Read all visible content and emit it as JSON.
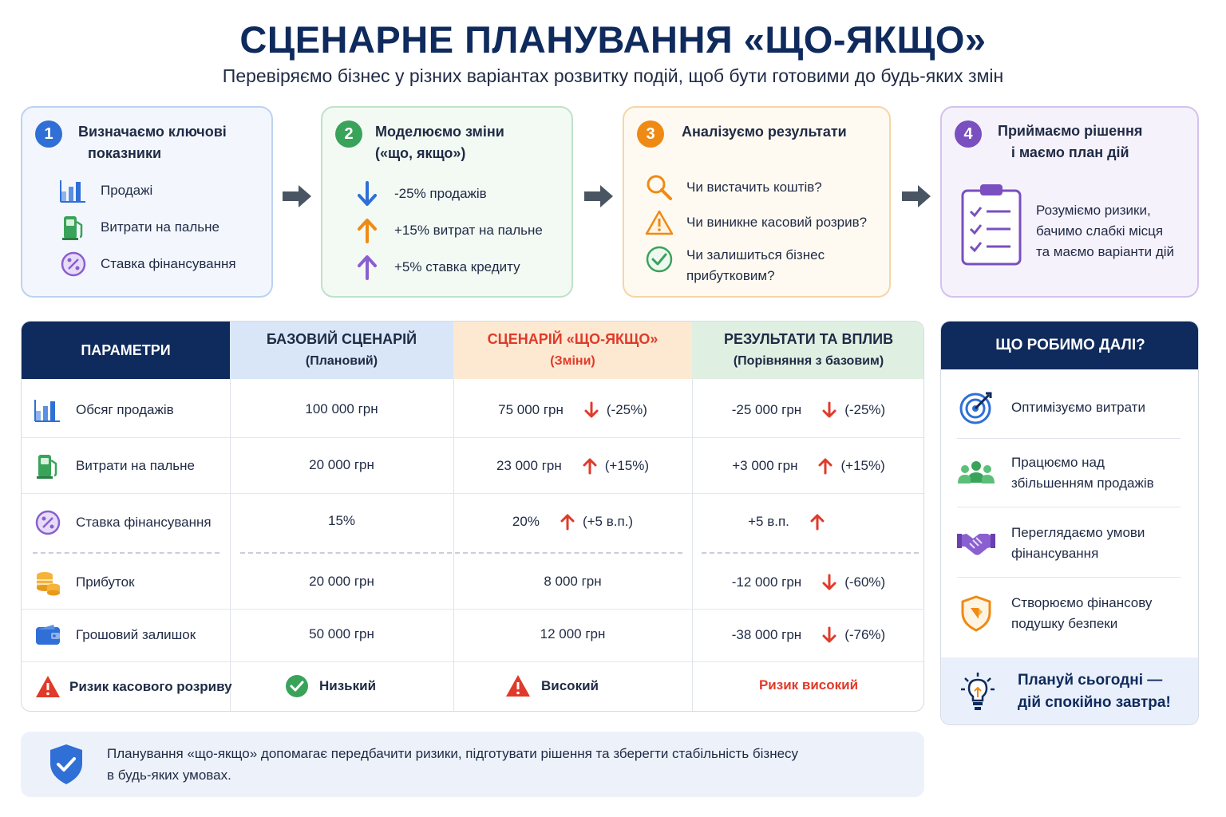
{
  "header": {
    "title": "СЦЕНАРНЕ ПЛАНУВАННЯ «ЩО-ЯКЩО»",
    "subtitle": "Перевіряємо бізнес у різних варіантах розвитку подій, щоб бути готовими до будь-яких змін"
  },
  "steps": [
    {
      "number": "1",
      "title_line1": "Визначаємо ключові",
      "title_line2": "показники",
      "color": "#2f6fd6",
      "items": [
        {
          "icon": "bar-chart-icon",
          "label": "Продажі"
        },
        {
          "icon": "fuel-pump-icon",
          "label": "Витрати на пальне"
        },
        {
          "icon": "percent-badge-icon",
          "label": "Ставка фінансування"
        }
      ]
    },
    {
      "number": "2",
      "title_line1": "Моделюємо зміни",
      "title_line2": "(«що, якщо»)",
      "color": "#3aa35a",
      "items": [
        {
          "icon": "arrow-down-icon",
          "label": "-25% продажів"
        },
        {
          "icon": "arrow-up-icon",
          "label": "+15% витрат на пальне"
        },
        {
          "icon": "arrow-up-icon",
          "label": "+5% ставка кредиту"
        }
      ]
    },
    {
      "number": "3",
      "title_line1": "Аналізуємо результати",
      "title_line2": "",
      "color": "#ef8a14",
      "items": [
        {
          "icon": "magnifier-icon",
          "label": "Чи вистачить коштів?"
        },
        {
          "icon": "warning-icon",
          "label": "Чи виникне касовий розрив?"
        },
        {
          "icon": "check-circle-icon",
          "label_line1": "Чи залишиться бізнес",
          "label_line2": "прибутковим?"
        }
      ]
    },
    {
      "number": "4",
      "title_line1": "Приймаємо рішення",
      "title_line2": "і маємо план дій",
      "color": "#7a4fc0",
      "icon": "clipboard-checklist-icon",
      "text_line1": "Розуміємо ризики,",
      "text_line2": "бачимо слабкі місця",
      "text_line3": "та маємо варіанти дій"
    }
  ],
  "table": {
    "headers": {
      "params": "ПАРАМЕТРИ",
      "base": "БАЗОВИЙ СЦЕНАРІЙ",
      "base_sub": "(Плановий)",
      "whatif": "СЦЕНАРІЙ «ЩО-ЯКЩО»",
      "whatif_sub": "(Зміни)",
      "result": "РЕЗУЛЬТАТИ ТА ВПЛИВ",
      "result_sub": "(Порівняння з базовим)"
    },
    "rows": [
      {
        "icon": "bar-chart-icon",
        "param": "Обсяг продажів",
        "base": "100 000 грн",
        "whatif": "75 000 грн",
        "whatif_change": "(-25%)",
        "whatif_dir": "down",
        "result": "-25 000 грн",
        "result_change": "(-25%)",
        "result_dir": "down"
      },
      {
        "icon": "fuel-pump-icon",
        "param": "Витрати на пальне",
        "base": "20 000 грн",
        "whatif": "23 000 грн",
        "whatif_change": "(+15%)",
        "whatif_dir": "up",
        "result": "+3 000 грн",
        "result_change": "(+15%)",
        "result_dir": "up"
      },
      {
        "icon": "percent-badge-icon",
        "param": "Ставка фінансування",
        "base": "15%",
        "whatif": "20%",
        "whatif_change": "(+5 в.п.)",
        "whatif_dir": "up",
        "result": "+5 в.п.",
        "result_change": "",
        "result_dir": "up"
      },
      {
        "icon": "coins-icon",
        "param": "Прибуток",
        "base": "20 000 грн",
        "whatif": "8 000 грн",
        "result": "-12 000 грн",
        "result_change": "(-60%)",
        "result_dir": "down"
      },
      {
        "icon": "wallet-icon",
        "param": "Грошовий залишок",
        "base": "50 000 грн",
        "whatif": "12 000 грн",
        "result": "-38 000 грн",
        "result_change": "(-76%)",
        "result_dir": "down"
      }
    ],
    "risk_row": {
      "icon": "warning-icon",
      "param": "Ризик касового розриву",
      "base": "Низький",
      "whatif": "Високий",
      "result": "Ризик високий"
    }
  },
  "side": {
    "title": "ЩО РОБИМО ДАЛІ?",
    "items": [
      {
        "icon": "target-icon",
        "line1": "Оптимізуємо витрати",
        "line2": ""
      },
      {
        "icon": "team-icon",
        "line1": "Працюємо над",
        "line2": "збільшенням продажів"
      },
      {
        "icon": "handshake-icon",
        "line1": "Переглядаємо умови",
        "line2": "фінансування"
      },
      {
        "icon": "shield-icon",
        "line1": "Створюємо фінансову",
        "line2": "подушку безпеки"
      }
    ],
    "footer_line1": "Плануй сьогодні —",
    "footer_line2": "дій спокійно завтра!"
  },
  "note": {
    "line1": "Планування «що-якщо» допомагає передбачити ризики, підготувати рішення та зберегти стабільність бізнесу",
    "line2": "в будь-яких умовах."
  },
  "colors": {
    "navy": "#0f2a5c",
    "blue": "#2f6fd6",
    "green": "#3aa35a",
    "orange": "#ef8a14",
    "purple": "#7a4fc0",
    "red": "#e03a2a"
  }
}
